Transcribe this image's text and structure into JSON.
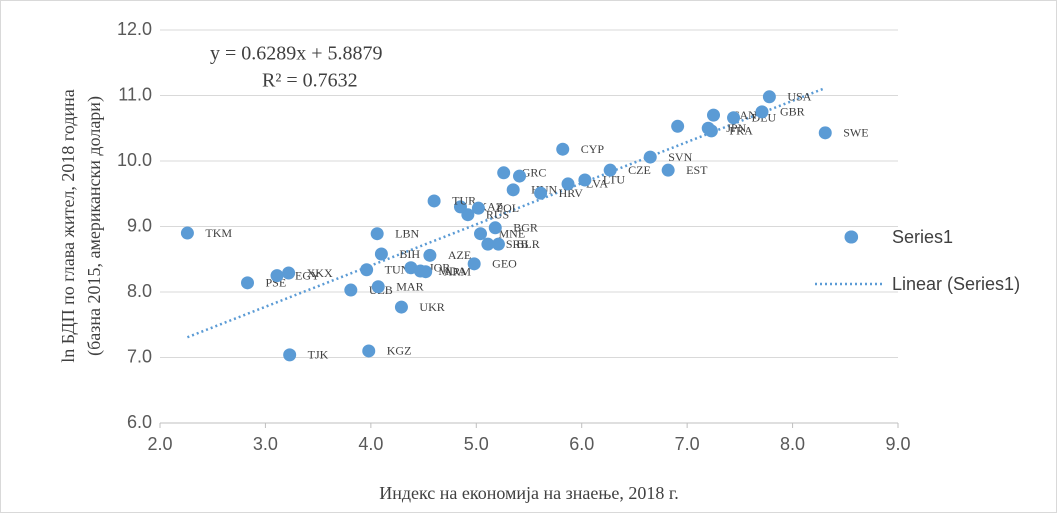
{
  "chart_data": {
    "type": "scatter",
    "x_label": "Индекс на економија на знаење, 2018 г.",
    "y_label": [
      "ln БДП по глава жител, 2018 година",
      "(базна 2015, американски долари)"
    ],
    "xlim": [
      2.0,
      9.0
    ],
    "ylim": [
      6.0,
      12.0
    ],
    "xticks": [
      {
        "value": 2,
        "label": "2.0"
      },
      {
        "value": 3,
        "label": "3.0"
      },
      {
        "value": 4,
        "label": "4.0"
      },
      {
        "value": 5,
        "label": "5.0"
      },
      {
        "value": 6,
        "label": "6.0"
      },
      {
        "value": 7,
        "label": "7.0"
      },
      {
        "value": 8,
        "label": "8.0"
      },
      {
        "value": 9,
        "label": "9.0"
      }
    ],
    "yticks": [
      {
        "value": 6,
        "label": "6.0"
      },
      {
        "value": 7,
        "label": "7.0"
      },
      {
        "value": 8,
        "label": "8.0"
      },
      {
        "value": 9,
        "label": "9.0"
      },
      {
        "value": 10,
        "label": "10.0"
      },
      {
        "value": 11,
        "label": "11.0"
      },
      {
        "value": 12,
        "label": "12.0"
      }
    ],
    "grid": true,
    "legend": "right",
    "series": [
      {
        "name": "Series1",
        "color": "#5b9bd5",
        "labels": [
          "TKM",
          "PSE",
          "EGY",
          "XKX",
          "TJK",
          "UZB",
          "TUN",
          "KGZ",
          "LBN",
          "BIH",
          "MAR",
          "UKR",
          "JOR",
          "MDA",
          "ARM",
          "AZE",
          "GEO",
          "SRB",
          "BLR",
          "MNE",
          "BGR",
          "RUS",
          "KAZ",
          "TUR",
          "POL",
          "HUN",
          "HRV",
          "GRC",
          null,
          "LVA",
          "LTU",
          "CYP",
          "CZE",
          "SVN",
          "EST",
          null,
          "FRA",
          "JPN",
          "CAN",
          "DEU",
          "GBR",
          "USA",
          "SWE",
          null
        ],
        "x": [
          2.26,
          2.83,
          3.11,
          3.22,
          3.23,
          3.81,
          3.96,
          3.98,
          4.06,
          4.1,
          4.07,
          4.29,
          4.38,
          4.47,
          4.52,
          4.56,
          4.98,
          5.11,
          5.21,
          5.04,
          5.18,
          4.92,
          4.85,
          4.6,
          5.02,
          5.35,
          5.61,
          5.26,
          5.41,
          5.87,
          6.03,
          5.82,
          6.27,
          6.65,
          6.82,
          6.91,
          7.23,
          7.2,
          7.25,
          7.44,
          7.71,
          7.78,
          8.31,
          8.56
        ],
        "values": [
          8.9,
          8.14,
          8.25,
          8.29,
          7.04,
          8.03,
          8.34,
          7.1,
          8.89,
          8.58,
          8.08,
          7.77,
          8.37,
          8.32,
          8.31,
          8.56,
          8.43,
          8.73,
          8.73,
          8.89,
          8.98,
          9.18,
          9.3,
          9.39,
          9.28,
          9.56,
          9.51,
          9.82,
          9.77,
          9.65,
          9.71,
          10.18,
          9.86,
          10.06,
          9.86,
          10.53,
          10.46,
          10.5,
          10.7,
          10.66,
          10.75,
          10.98,
          10.43,
          8.84
        ]
      }
    ],
    "trendline": {
      "name": "Linear (Series1)",
      "slope": 0.6289,
      "intercept": 5.8879,
      "xrange": [
        2.26,
        8.31
      ],
      "color": "#5b9bd5"
    },
    "annotations": [
      "y = 0.6289x + 5.8879",
      "R² = 0.7632"
    ]
  }
}
